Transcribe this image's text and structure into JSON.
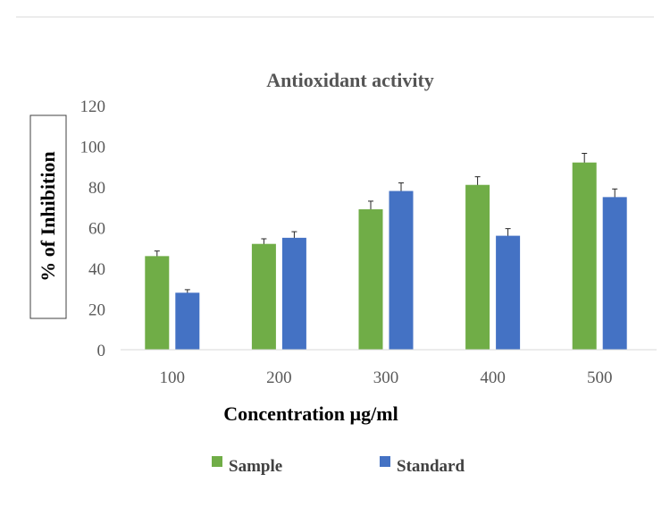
{
  "chart_data": {
    "type": "bar",
    "title": "Antioxidant activity",
    "xlabel": "Concentration µg/ml",
    "ylabel": "% of Inhibition",
    "categories": [
      "100",
      "200",
      "300",
      "400",
      "500"
    ],
    "ylim": [
      0,
      120
    ],
    "yticks": [
      0,
      20,
      40,
      60,
      80,
      100,
      120
    ],
    "grid": false,
    "legend_position": "bottom",
    "series": [
      {
        "name": "Sample",
        "color": "#70ad47",
        "values": [
          46,
          52,
          69,
          81,
          92
        ],
        "errors": [
          2.5,
          2.5,
          4,
          4,
          4.5
        ]
      },
      {
        "name": "Standard",
        "color": "#4472c4",
        "values": [
          28,
          55,
          78,
          56,
          75
        ],
        "errors": [
          1.5,
          3,
          4,
          3.5,
          4
        ]
      }
    ]
  }
}
